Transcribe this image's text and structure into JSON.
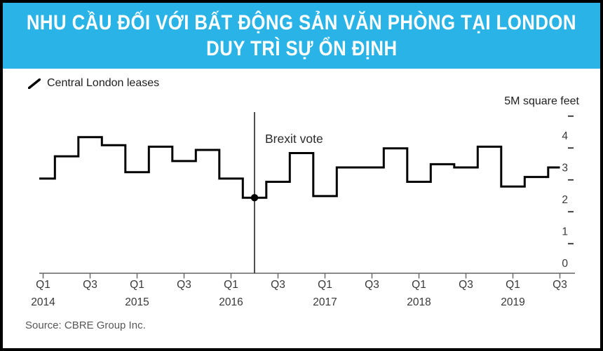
{
  "title": {
    "line1": "NHU CẦU ĐỐI VỚI BẤT ĐỘNG SẢN VĂN PHÒNG TẠI LONDON",
    "line2": "DUY TRÌ SỰ ỔN ĐỊNH"
  },
  "source": "Source: CBRE Group Inc.",
  "icons": {
    "legend_marker": "diagonal-line"
  },
  "colors": {
    "banner": "#29b3e7",
    "title_text": "#ffffff",
    "series_line": "#000000",
    "axis_line": "#8a8a8a",
    "tick": "#6b6b6b",
    "axis_text": "#383838",
    "annotation_line": "#3d3d3d",
    "source_text": "#575757"
  },
  "chart_data": {
    "type": "line",
    "subtype": "step",
    "title": "",
    "legend": "Central London leases",
    "ylabel": "5M square feet",
    "xlabel": "",
    "ylim": [
      0,
      5
    ],
    "y_ticks": [
      0,
      1,
      2,
      3,
      4
    ],
    "y_minor_ticks": [
      0.5,
      1.5,
      2.5,
      3.5,
      4.5
    ],
    "x": [
      "Q1 2014",
      "Q2 2014",
      "Q3 2014",
      "Q4 2014",
      "Q1 2015",
      "Q2 2015",
      "Q3 2015",
      "Q4 2015",
      "Q1 2016",
      "Q2 2016",
      "Q3 2016",
      "Q4 2016",
      "Q1 2017",
      "Q2 2017",
      "Q3 2017",
      "Q4 2017",
      "Q1 2018",
      "Q2 2018",
      "Q3 2018",
      "Q4 2018",
      "Q1 2019",
      "Q2 2019",
      "Q3 2019"
    ],
    "values": [
      2.65,
      3.35,
      3.95,
      3.7,
      2.85,
      3.65,
      3.2,
      3.55,
      2.65,
      2.05,
      2.55,
      3.45,
      2.1,
      3.0,
      3.0,
      3.6,
      2.55,
      3.1,
      3.0,
      3.65,
      2.4,
      2.7,
      3.0
    ],
    "x_ticks": [
      {
        "label": "Q1",
        "year": "2014"
      },
      {
        "label": "Q3",
        "year": ""
      },
      {
        "label": "Q1",
        "year": "2015"
      },
      {
        "label": "Q3",
        "year": ""
      },
      {
        "label": "Q1",
        "year": "2016"
      },
      {
        "label": "Q3",
        "year": ""
      },
      {
        "label": "Q1",
        "year": "2017"
      },
      {
        "label": "Q3",
        "year": ""
      },
      {
        "label": "Q1",
        "year": "2018"
      },
      {
        "label": "Q3",
        "year": ""
      },
      {
        "label": "Q1",
        "year": "2019"
      },
      {
        "label": "Q3",
        "year": ""
      }
    ],
    "annotation": {
      "label": "Brexit vote",
      "x": "Q2 2016",
      "index": 9,
      "value": 2.05
    }
  }
}
